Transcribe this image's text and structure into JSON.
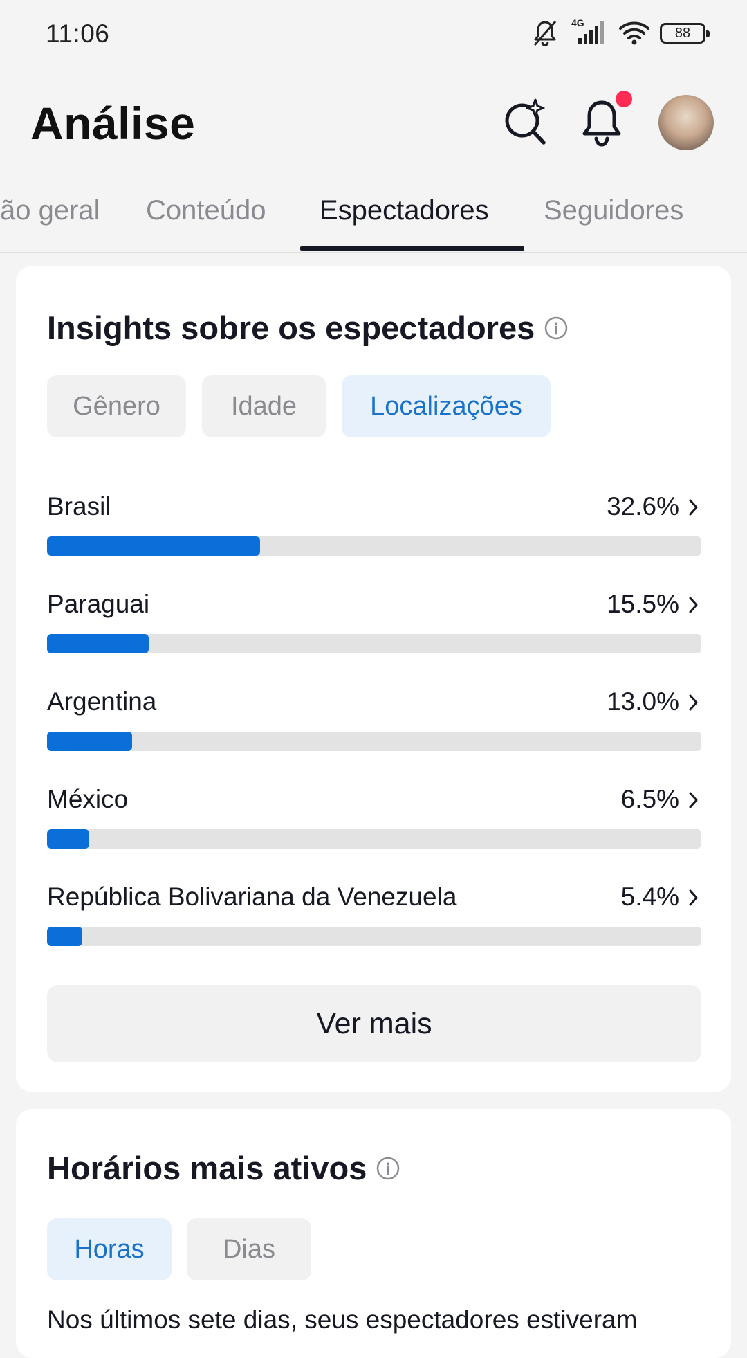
{
  "status_bar": {
    "time": "11:06",
    "network": "4G",
    "battery": "88",
    "icons": [
      "muted-bell-icon",
      "signal-icon",
      "wifi-icon",
      "battery-icon"
    ]
  },
  "header": {
    "title": "Análise",
    "icons": [
      "ai-search-icon",
      "bell-icon",
      "avatar"
    ],
    "notification_dot_color": "#fe2c55"
  },
  "tabs": [
    {
      "label": "ão geral",
      "active": false
    },
    {
      "label": "Conteúdo",
      "active": false
    },
    {
      "label": "Espectadores",
      "active": true
    },
    {
      "label": "Seguidores",
      "active": false
    }
  ],
  "viewer_insights": {
    "title": "Insights sobre os espectadores",
    "filters": [
      {
        "label": "Gênero",
        "active": false
      },
      {
        "label": "Idade",
        "active": false
      },
      {
        "label": "Localizações",
        "active": true
      }
    ],
    "locations": [
      {
        "name": "Brasil",
        "percent_label": "32.6%",
        "percent": 32.6
      },
      {
        "name": "Paraguai",
        "percent_label": "15.5%",
        "percent": 15.5
      },
      {
        "name": "Argentina",
        "percent_label": "13.0%",
        "percent": 13.0
      },
      {
        "name": "México",
        "percent_label": "6.5%",
        "percent": 6.5
      },
      {
        "name": "República Bolivariana da Venezuela",
        "percent_label": "5.4%",
        "percent": 5.4
      }
    ],
    "more_label": "Ver mais"
  },
  "active_times": {
    "title": "Horários mais ativos",
    "filters": [
      {
        "label": "Horas",
        "active": true
      },
      {
        "label": "Dias",
        "active": false
      }
    ],
    "description": "Nos últimos sete dias, seus espectadores estiveram"
  },
  "colors": {
    "accent": "#0b6fd9",
    "active_chip_bg": "#e6f1fc",
    "active_chip_text": "#1a73c8",
    "bar_track": "#e3e3e4",
    "background": "#f4f4f4"
  }
}
